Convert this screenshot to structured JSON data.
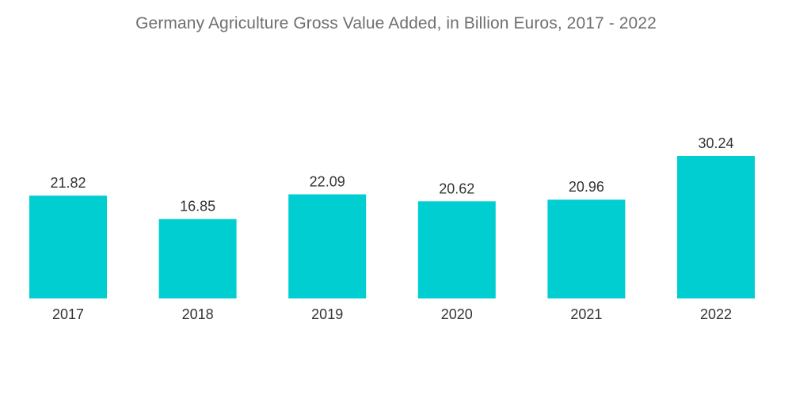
{
  "chart_data": {
    "type": "bar",
    "title": "Germany Agriculture Gross Value Added, in Billion Euros, 2017 - 2022",
    "categories": [
      "2017",
      "2018",
      "2019",
      "2020",
      "2021",
      "2022"
    ],
    "values": [
      21.82,
      16.85,
      22.09,
      20.62,
      20.96,
      30.24
    ],
    "value_labels": [
      "21.82",
      "16.85",
      "22.09",
      "20.62",
      "20.96",
      "30.24"
    ],
    "xlabel": "",
    "ylabel": "",
    "ylim": [
      0,
      30.24
    ],
    "grid": false,
    "legend": "none",
    "bar_color": "#00ced1"
  }
}
